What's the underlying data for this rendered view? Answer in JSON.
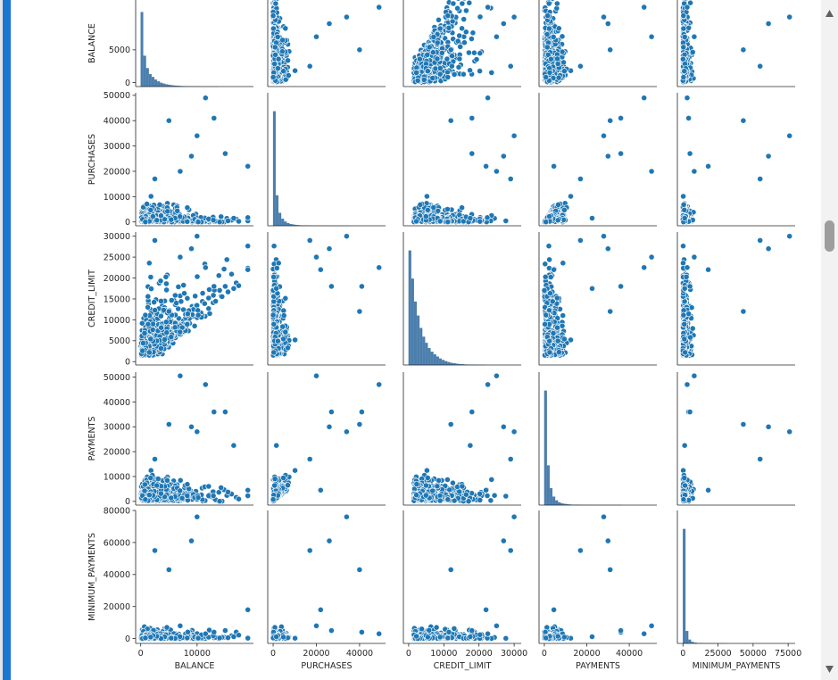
{
  "colors": {
    "marker": "#1f77b4",
    "marker_edge": "#ffffff",
    "hist_fill": "#4a7fb0",
    "cell_marker": "#1976d2",
    "scroll_thumb": "#9d9d9d"
  },
  "scrollbar": {
    "up_icon": "triangle-up-icon",
    "down_icon": "triangle-down-icon",
    "scroll_position": 0.33
  },
  "chart_data": {
    "type": "scatter",
    "subtype": "pairplot",
    "variables": [
      "BALANCE",
      "PURCHASES",
      "CREDIT_LIMIT",
      "PAYMENTS",
      "MINIMUM_PAYMENTS"
    ],
    "row_labels": [
      "BALANCE",
      "PURCHASES",
      "CREDIT_LIMIT",
      "PAYMENTS",
      "MINIMUM_PAYMENTS"
    ],
    "col_labels": [
      "BALANCE",
      "PURCHASES",
      "CREDIT_LIMIT",
      "PAYMENTS",
      "MINIMUM_PAYMENTS"
    ],
    "diagonal": "histogram",
    "axes": {
      "BALANCE": {
        "range": [
          -900,
          20000
        ],
        "ticks": [
          0,
          10000
        ],
        "row_range": [
          -600,
          12600
        ],
        "row_ticks": [
          0,
          5000
        ]
      },
      "PURCHASES": {
        "range": [
          -2500,
          52000
        ],
        "ticks": [
          0,
          20000,
          40000
        ],
        "row_range": [
          -1500,
          51000
        ],
        "row_ticks": [
          0,
          10000,
          20000,
          30000,
          40000,
          50000
        ]
      },
      "CREDIT_LIMIT": {
        "range": [
          -1500,
          32000
        ],
        "ticks": [
          0,
          10000,
          20000,
          30000
        ],
        "row_range": [
          -800,
          31000
        ],
        "row_ticks": [
          0,
          5000,
          10000,
          15000,
          20000,
          25000,
          30000
        ]
      },
      "PAYMENTS": {
        "range": [
          -2500,
          53000
        ],
        "ticks": [
          0,
          20000,
          40000
        ],
        "row_range": [
          -1500,
          52000
        ],
        "row_ticks": [
          0,
          10000,
          20000,
          30000,
          40000,
          50000
        ]
      },
      "MINIMUM_PAYMENTS": {
        "range": [
          -4000,
          80000
        ],
        "ticks": [
          0,
          25000,
          50000,
          75000
        ],
        "row_range": [
          -3000,
          80000
        ],
        "row_ticks": [
          0,
          20000,
          40000,
          60000,
          80000
        ]
      }
    },
    "histograms": {
      "BALANCE": [
        12600,
        5200,
        3100,
        2100,
        1600,
        1150,
        850,
        620,
        470,
        360,
        270,
        200,
        150,
        110,
        80,
        60,
        40,
        30,
        20,
        14,
        10,
        7,
        5,
        3,
        2,
        1,
        1,
        1
      ],
      "PURCHASES": [
        9800,
        2600,
        1100,
        600,
        350,
        220,
        140,
        90,
        60,
        40,
        28,
        20,
        14,
        10,
        7,
        5,
        4,
        3,
        2,
        2,
        1,
        1,
        1,
        1,
        1,
        1,
        1,
        1
      ],
      "CREDIT_LIMIT": [
        13000,
        9800,
        7200,
        5600,
        4200,
        3200,
        2500,
        1900,
        1500,
        1200,
        950,
        720,
        560,
        420,
        320,
        240,
        180,
        130,
        95,
        70,
        50,
        35,
        24,
        16,
        10,
        6,
        4,
        2
      ],
      "PAYMENTS": [
        15000,
        5200,
        2200,
        1100,
        600,
        350,
        220,
        140,
        90,
        60,
        40,
        28,
        20,
        14,
        10,
        7,
        5,
        4,
        3,
        2,
        2,
        1,
        1,
        1,
        1,
        1,
        1,
        1
      ],
      "MINIMUM_PAYMENTS": [
        50000,
        5400,
        1600,
        600,
        260,
        130,
        70,
        40,
        25,
        16,
        10,
        7,
        5,
        3,
        2,
        2,
        1,
        1,
        1,
        1,
        1,
        1,
        1,
        1,
        1,
        1,
        1,
        1
      ]
    }
  }
}
